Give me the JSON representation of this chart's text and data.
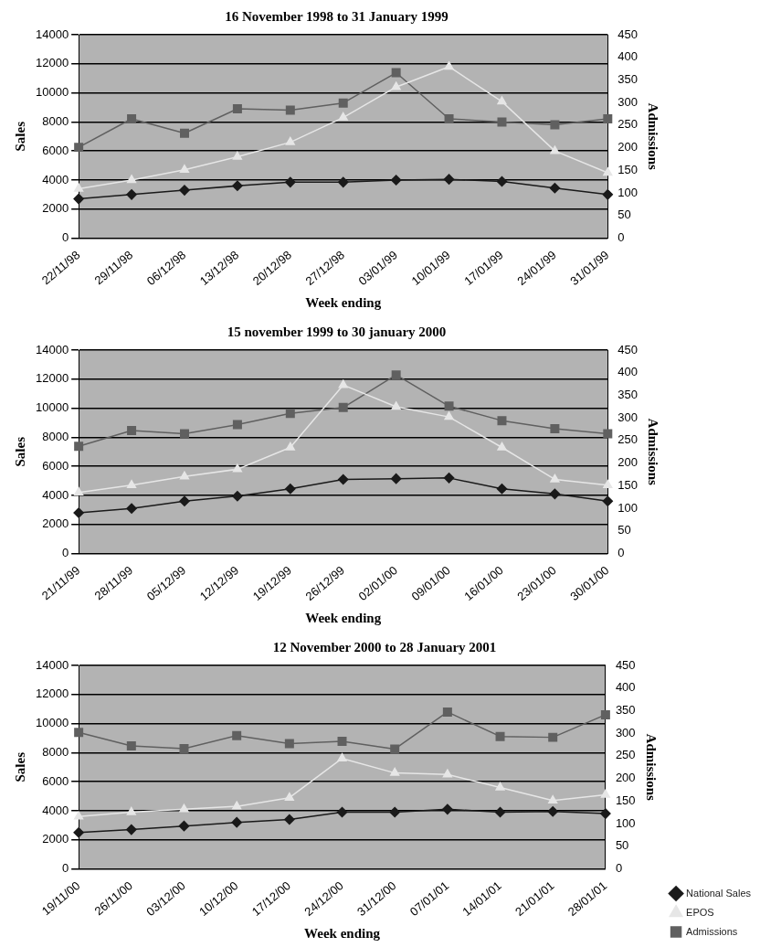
{
  "chart_data": [
    {
      "type": "line",
      "title": "16 November 1998 to 31 January 1999",
      "xlabel": "Week ending",
      "ylabel": "Sales",
      "y2label": "Admissions",
      "categories": [
        "22/11/98",
        "29/11/98",
        "06/12/98",
        "13/12/98",
        "20/12/98",
        "27/12/98",
        "03/01/99",
        "10/01/99",
        "17/01/99",
        "24/01/99",
        "31/01/99"
      ],
      "series": [
        {
          "color": "#1a1a1a",
          "marker": "diamond",
          "values": [
            2700,
            3000,
            3300,
            3600,
            3850,
            3850,
            4000,
            4050,
            3900,
            3450,
            3000
          ]
        },
        {
          "color": "#e6e6e6",
          "marker": "triangle",
          "values": [
            3400,
            4000,
            4700,
            5600,
            6600,
            8300,
            10400,
            11800,
            9400,
            6000,
            4500
          ]
        },
        {
          "color": "#606060",
          "marker": "square",
          "axis": "y2",
          "values": [
            201,
            264,
            232,
            286,
            283,
            299,
            366,
            264,
            257,
            251,
            264
          ]
        }
      ],
      "ylim": [
        0,
        14000
      ],
      "yticks": [
        0,
        2000,
        4000,
        6000,
        8000,
        10000,
        12000,
        14000
      ],
      "y2lim": [
        0,
        450
      ],
      "y2ticks": [
        0,
        50,
        100,
        150,
        200,
        250,
        300,
        350,
        400,
        450
      ],
      "grid": "y",
      "legend": false
    },
    {
      "type": "line",
      "title": "15 november 1999 to 30 january 2000",
      "xlabel": "Week ending",
      "ylabel": "Sales",
      "y2label": "Admissions",
      "categories": [
        "21/11/99",
        "28/11/99",
        "05/12/99",
        "12/12/99",
        "19/12/99",
        "26/12/99",
        "02/01/00",
        "09/01/00",
        "16/01/00",
        "23/01/00",
        "30/01/00"
      ],
      "series": [
        {
          "color": "#1a1a1a",
          "marker": "diamond",
          "values": [
            2800,
            3100,
            3600,
            3950,
            4450,
            5100,
            5150,
            5200,
            4450,
            4100,
            3600
          ]
        },
        {
          "color": "#e6e6e6",
          "marker": "triangle",
          "values": [
            4200,
            4700,
            5300,
            5800,
            7300,
            11600,
            10100,
            9400,
            7300,
            5100,
            4700
          ]
        },
        {
          "color": "#606060",
          "marker": "square",
          "axis": "y2",
          "values": [
            237,
            272,
            265,
            285,
            310,
            323,
            395,
            326,
            294,
            276,
            265
          ]
        }
      ],
      "ylim": [
        0,
        14000
      ],
      "yticks": [
        0,
        2000,
        4000,
        6000,
        8000,
        10000,
        12000,
        14000
      ],
      "y2lim": [
        0,
        450
      ],
      "y2ticks": [
        0,
        50,
        100,
        150,
        200,
        250,
        300,
        350,
        400,
        450
      ],
      "grid": "y",
      "legend": false
    },
    {
      "type": "line",
      "title": "12 November 2000 to 28 January 2001",
      "xlabel": "Week ending",
      "ylabel": "Sales",
      "y2label": "Admissions",
      "categories": [
        "19/11/00",
        "26/11/00",
        "03/12/00",
        "10/12/00",
        "17/12/00",
        "24/12/00",
        "31/12/00",
        "07/01/01",
        "14/01/01",
        "21/01/01",
        "28/01/01"
      ],
      "series": [
        {
          "name": "National Sales",
          "color": "#1a1a1a",
          "marker": "diamond",
          "values": [
            2500,
            2700,
            2950,
            3200,
            3400,
            3900,
            3900,
            4100,
            3900,
            3950,
            3800
          ]
        },
        {
          "name": "EPOS",
          "color": "#e6e6e6",
          "marker": "triangle",
          "values": [
            3600,
            3900,
            4100,
            4300,
            4900,
            7600,
            6600,
            6500,
            5600,
            4700,
            5100
          ]
        },
        {
          "name": "Admissions",
          "color": "#606060",
          "marker": "square",
          "axis": "y2",
          "values": [
            302,
            272,
            266,
            295,
            277,
            282,
            265,
            347,
            293,
            291,
            341
          ]
        }
      ],
      "ylim": [
        0,
        14000
      ],
      "yticks": [
        0,
        2000,
        4000,
        6000,
        8000,
        10000,
        12000,
        14000
      ],
      "y2lim": [
        0,
        450
      ],
      "y2ticks": [
        0,
        50,
        100,
        150,
        200,
        250,
        300,
        350,
        400,
        450
      ],
      "grid": "y",
      "legend": "bottom right"
    }
  ]
}
